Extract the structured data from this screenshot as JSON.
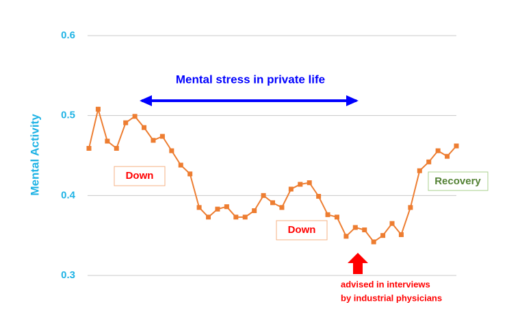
{
  "chart_data": {
    "type": "line",
    "y_label": "Mental  Activity",
    "categories": [
      null,
      null,
      null,
      null,
      null,
      null,
      null,
      null,
      null,
      null,
      null,
      null,
      null,
      null,
      null,
      null,
      null,
      null,
      null,
      null,
      null,
      null,
      null,
      null,
      null,
      null,
      null,
      null,
      null,
      null,
      null,
      null,
      null,
      null,
      null,
      null,
      null,
      null,
      null,
      null,
      null
    ],
    "series": [
      {
        "color": "#ed7d31",
        "values": [
          0.459,
          0.508,
          0.468,
          0.459,
          0.491,
          0.499,
          0.485,
          0.469,
          0.474,
          0.456,
          0.438,
          0.427,
          0.385,
          0.373,
          0.383,
          0.386,
          0.373,
          0.373,
          0.381,
          0.4,
          0.391,
          0.385,
          0.408,
          0.414,
          0.416,
          0.399,
          0.376,
          0.373,
          0.349,
          0.36,
          0.357,
          0.342,
          0.35,
          0.365,
          0.351,
          0.385,
          0.431,
          0.442,
          0.456,
          0.449,
          0.462
        ]
      }
    ],
    "ylim": [
      0.3,
      0.6
    ],
    "yticks": [
      0.3,
      0.4,
      0.5,
      0.6
    ],
    "grid": true,
    "annotations": {
      "stress": "Mental stress in private life",
      "down1": "Down",
      "down2": "Down",
      "recovery": "Recovery",
      "advice": [
        "advised in interviews",
        "by industrial physicians"
      ]
    }
  }
}
